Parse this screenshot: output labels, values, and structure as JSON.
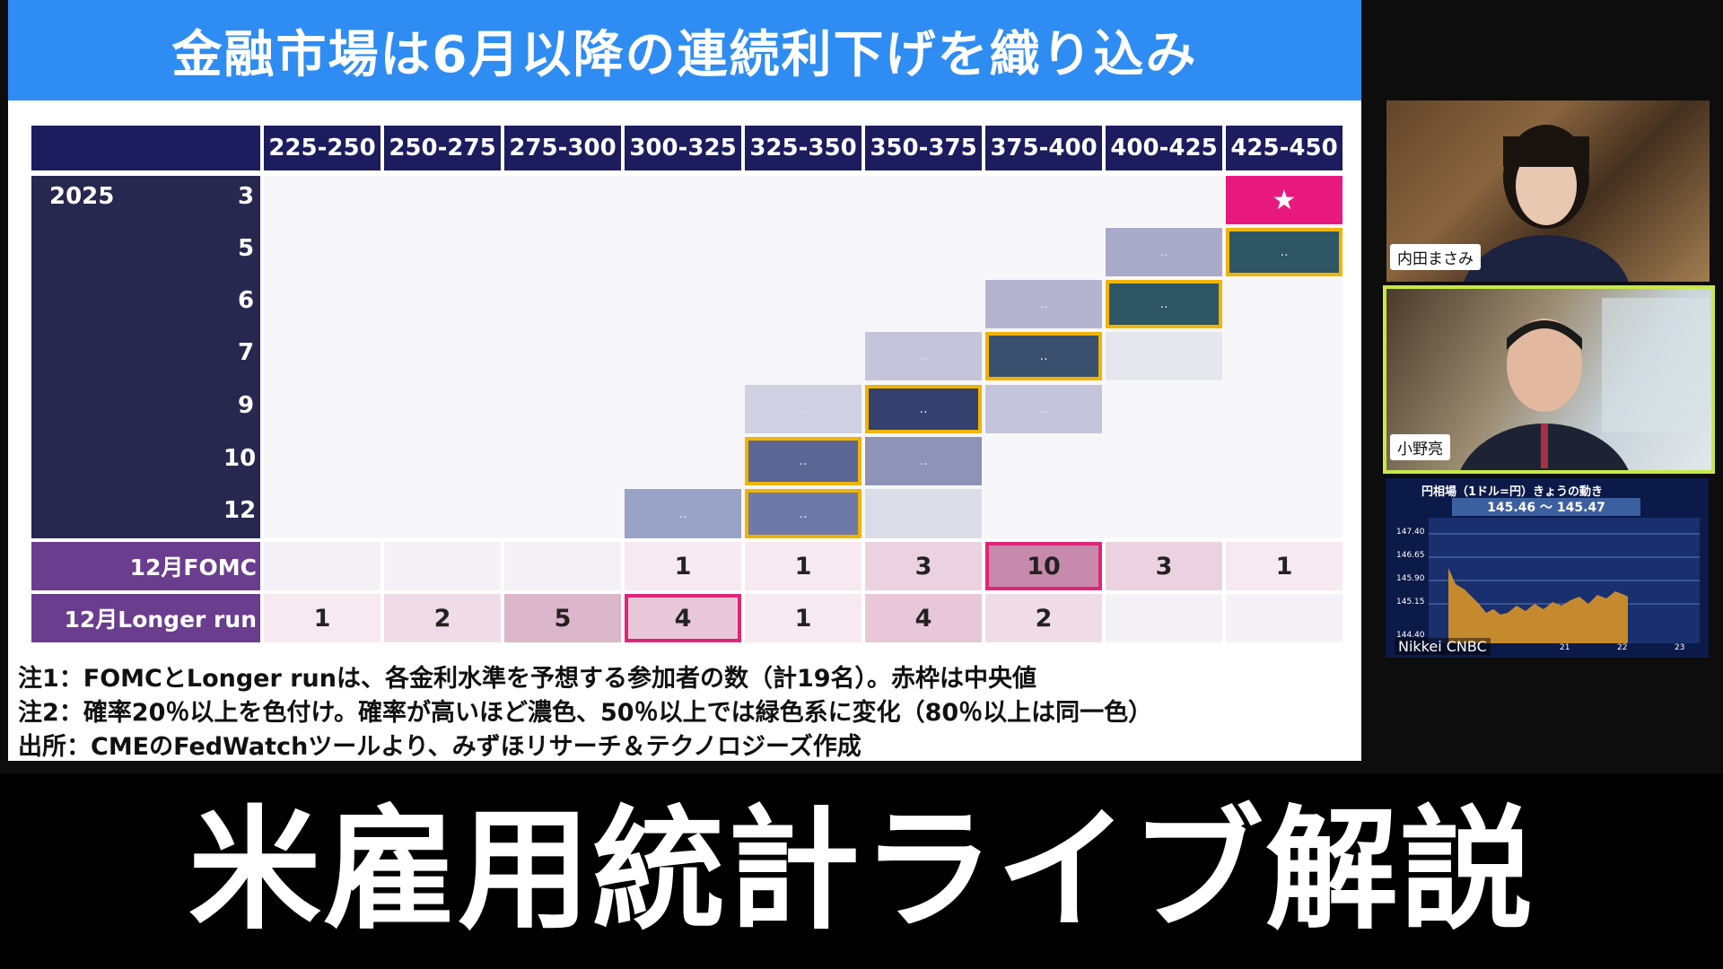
{
  "slide": {
    "title": "金融市場は6月以降の連続利下げを織り込み",
    "column_headers": [
      "225-250",
      "250-275",
      "275-300",
      "300-325",
      "325-350",
      "350-375",
      "375-400",
      "400-425",
      "425-450"
    ],
    "year_label": "2025",
    "months": [
      "3",
      "5",
      "6",
      "7",
      "9",
      "10",
      "12"
    ],
    "star_symbol": "★",
    "fomc_row": {
      "label": "12月FOMC",
      "values": [
        "",
        "",
        "",
        "1",
        "1",
        "3",
        "10",
        "3",
        "1"
      ]
    },
    "longer_run_row": {
      "label": "12月Longer run",
      "values": [
        "1",
        "2",
        "5",
        "4",
        "1",
        "4",
        "2",
        "",
        ""
      ]
    },
    "notes": [
      "注1：FOMCとLonger runは、各金利水準を予想する参加者の数（計19名）。赤枠は中央値",
      "注2：確率20％以上を色付け。確率が高いほど濃色、50％以上では緑色系に変化（80％以上は同一色）",
      "出所：CMEのFedWatchツールより、みずほリサーチ＆テクノロジーズ作成"
    ],
    "colors": {
      "header_blue": "#2f8cf2",
      "navy": "#1c1c5e",
      "purple": "#6a3d8f",
      "median_border": "#e0247a",
      "highlight_border": "#f0b400",
      "star_cell": "#e8197e"
    }
  },
  "participants": [
    {
      "name": "内田まさみ"
    },
    {
      "name": "小野亮"
    }
  ],
  "market": {
    "title": "円相場（1ドル=円）きょうの動き",
    "range": "145.46 ～ 145.47",
    "y_ticks": [
      "147.40",
      "146.65",
      "145.90",
      "145.15",
      "144.40"
    ],
    "x_ticks": [
      "21",
      "22",
      "23"
    ],
    "logo": "Nikkei CNBC"
  },
  "caption": "米雇用統計ライブ解説"
}
